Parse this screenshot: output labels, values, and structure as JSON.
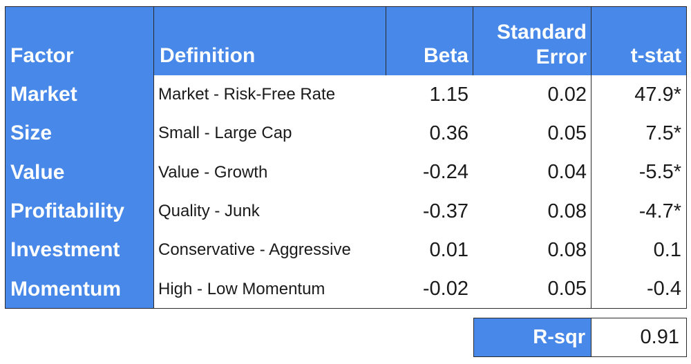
{
  "table": {
    "headers": {
      "factor": "Factor",
      "definition": "Definition",
      "beta": "Beta",
      "se_line1": "Standard",
      "se_line2": "Error",
      "tstat": "t-stat"
    },
    "rows": [
      {
        "factor": "Market",
        "definition": "Market - Risk-Free Rate",
        "beta": "1.15",
        "se": "0.02",
        "tstat": "47.9*"
      },
      {
        "factor": "Size",
        "definition": "Small - Large Cap",
        "beta": "0.36",
        "se": "0.05",
        "tstat": "7.5*"
      },
      {
        "factor": "Value",
        "definition": "Value - Growth",
        "beta": "-0.24",
        "se": "0.04",
        "tstat": "-5.5*"
      },
      {
        "factor": "Profitability",
        "definition": "Quality - Junk",
        "beta": "-0.37",
        "se": "0.08",
        "tstat": "-4.7*"
      },
      {
        "factor": "Investment",
        "definition": "Conservative - Aggressive",
        "beta": "0.01",
        "se": "0.08",
        "tstat": "0.1"
      },
      {
        "factor": "Momentum",
        "definition": "High - Low Momentum",
        "beta": "-0.02",
        "se": "0.05",
        "tstat": "-0.4"
      }
    ]
  },
  "rsquared": {
    "label": "R-sqr",
    "value": "0.91"
  },
  "colors": {
    "header_bg": "#4788E9",
    "header_text": "#FFFFFF",
    "body_text": "#1A1A1A",
    "grid": "#2A2A2A"
  }
}
